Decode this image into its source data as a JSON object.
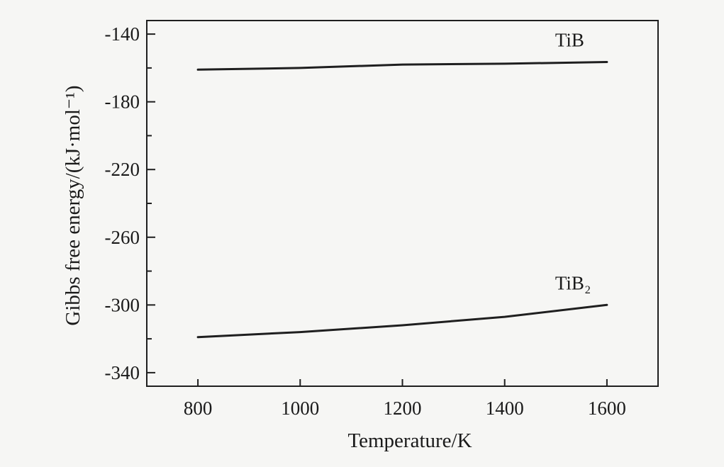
{
  "chart_data": {
    "type": "line",
    "xlabel": "Temperature/K",
    "ylabel": "Gibbs free energy/(kJ·mol⁻¹)",
    "xlim": [
      700,
      1700
    ],
    "ylim": [
      -348,
      -132
    ],
    "x_ticks": [
      800,
      1000,
      1200,
      1400,
      1600
    ],
    "x_tick_labels": [
      "800",
      "1000",
      "1200",
      "1400",
      "1600"
    ],
    "y_major_ticks": [
      -140,
      -180,
      -220,
      -260,
      -300,
      -340
    ],
    "y_tick_labels": [
      "-140",
      "-180",
      "-220",
      "-260",
      "-300",
      "-340"
    ],
    "y_minor_ticks": [
      -160,
      -200,
      -240,
      -280,
      -320
    ],
    "grid": false,
    "series": [
      {
        "name": "TiB",
        "x": [
          800,
          1000,
          1200,
          1400,
          1600
        ],
        "y": [
          -161,
          -160,
          -158,
          -157.5,
          -156.5
        ]
      },
      {
        "name": "TiB₂",
        "x": [
          800,
          1000,
          1200,
          1400,
          1600
        ],
        "y": [
          -319,
          -316,
          -312,
          -307,
          -300
        ]
      }
    ]
  }
}
